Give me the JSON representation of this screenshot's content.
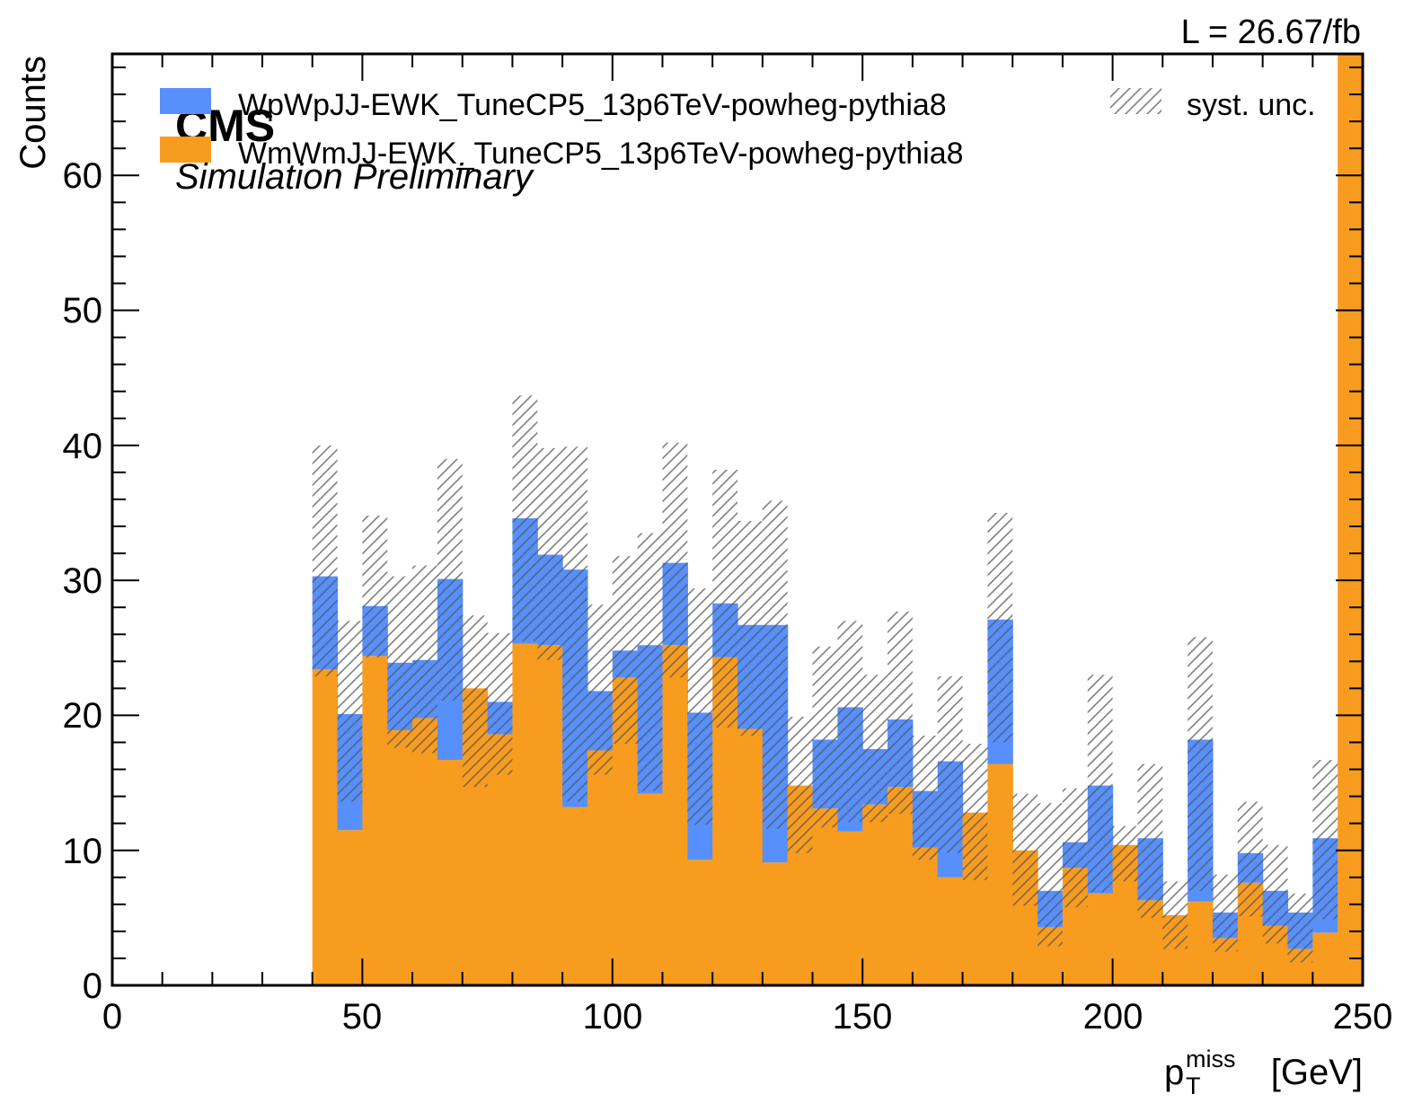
{
  "header": {
    "lumi": "L = 26.67/fb",
    "cms": "CMS",
    "sub": "Simulation Preliminary"
  },
  "chart_data": {
    "type": "bar",
    "stacked": true,
    "xlabel_main": "p",
    "xlabel_sub": "T",
    "xlabel_sup": "miss",
    "xlabel_unit": "[GeV]",
    "ylabel": "Counts",
    "xlim": [
      0,
      250
    ],
    "ylim": [
      0,
      69
    ],
    "xticks": [
      "0",
      "50",
      "100",
      "150",
      "200",
      "250"
    ],
    "yticks": [
      "0",
      "10",
      "20",
      "30",
      "40",
      "50",
      "60"
    ],
    "bin_edges": [
      40,
      45,
      50,
      55,
      60,
      65,
      70,
      75,
      80,
      85,
      90,
      95,
      100,
      105,
      110,
      115,
      120,
      125,
      130,
      135,
      140,
      145,
      150,
      155,
      160,
      165,
      170,
      175,
      180,
      185,
      190,
      195,
      200,
      205,
      210,
      215,
      220,
      225,
      230,
      235,
      240,
      245,
      250
    ],
    "series": [
      {
        "name": "WmWmJJ-EWK_TuneCP5_13p6TeV-powheg-pythia8",
        "color": "#f89c20",
        "values": [
          23.4,
          11.5,
          24.4,
          18.9,
          19.8,
          16.7,
          22.0,
          18.6,
          25.3,
          25.2,
          13.2,
          17.4,
          22.8,
          14.2,
          25.2,
          9.3,
          24.3,
          19.0,
          9.1,
          14.8,
          13.1,
          11.4,
          13.4,
          14.7,
          10.2,
          8.0,
          12.8,
          16.4,
          10.0,
          4.3,
          8.7,
          6.8,
          10.4,
          6.3,
          5.2,
          6.2,
          3.5,
          7.6,
          4.4,
          2.7,
          3.9,
          69.0
        ]
      },
      {
        "name": "WpWpJJ-EWK_TuneCP5_13p6TeV-powheg-pythia8",
        "color": "#5790fc",
        "values": [
          6.9,
          8.6,
          3.7,
          5.0,
          4.3,
          13.4,
          0,
          2.4,
          9.3,
          6.7,
          17.6,
          4.4,
          2.0,
          11.0,
          6.1,
          10.9,
          4.0,
          7.7,
          17.6,
          0,
          5.1,
          9.2,
          4.1,
          5.0,
          4.2,
          8.6,
          0,
          10.7,
          0,
          2.7,
          1.9,
          8.0,
          0,
          4.6,
          0,
          12.0,
          1.9,
          2.2,
          2.6,
          2.7,
          7.0,
          0
        ]
      }
    ],
    "syst_unc": {
      "name": "syst. unc.",
      "up": [
        40.0,
        27.0,
        34.8,
        30.3,
        31.1,
        39.0,
        27.4,
        26.1,
        43.7,
        39.8,
        39.9,
        28.2,
        31.8,
        33.5,
        40.2,
        29.4,
        38.2,
        34.4,
        35.9,
        19.9,
        25.1,
        27.0,
        23.0,
        27.7,
        18.5,
        22.9,
        17.9,
        35.0,
        14.2,
        13.5,
        14.6,
        23.0,
        11.8,
        16.4,
        7.7,
        25.8,
        8.2,
        13.6,
        10.4,
        6.8,
        16.7,
        69.0
      ],
      "down": [
        22.9,
        13.6,
        24.3,
        17.6,
        17.2,
        21.1,
        14.7,
        15.6,
        25.5,
        24.1,
        13.6,
        15.6,
        17.9,
        14.4,
        22.8,
        11.9,
        19.1,
        18.5,
        11.6,
        9.8,
        11.7,
        12.1,
        12.1,
        12.7,
        9.3,
        9.8,
        7.8,
        18.0,
        5.9,
        2.9,
        5.8,
        6.9,
        7.7,
        5.0,
        2.7,
        7.0,
        2.5,
        5.1,
        3.1,
        1.7,
        4.9,
        69.0
      ]
    },
    "legend": {
      "position": "top",
      "entries": [
        {
          "label": "WpWpJJ-EWK_TuneCP5_13p6TeV-powheg-pythia8",
          "swatch": "#5790fc"
        },
        {
          "label": "WmWmJJ-EWK_TuneCP5_13p6TeV-powheg-pythia8",
          "swatch": "#f89c20"
        },
        {
          "label": "syst. unc.",
          "swatch": "hatch"
        }
      ]
    },
    "grid": false
  }
}
